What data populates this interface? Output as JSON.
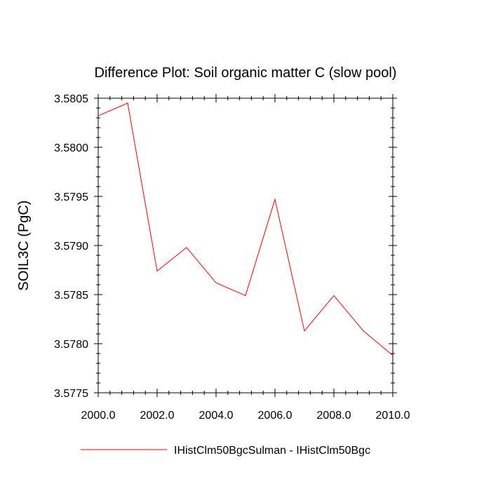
{
  "chart_data": {
    "type": "line",
    "title": "Difference Plot: Soil organic matter C (slow pool)",
    "xlabel": "",
    "ylabel": "SOIL3C  (PgC)",
    "xlim": [
      2000.0,
      2010.0
    ],
    "ylim": [
      3.5775,
      3.5805
    ],
    "xticks": [
      "2000.0",
      "2002.0",
      "2004.0",
      "2006.0",
      "2008.0",
      "2010.0"
    ],
    "yticks": [
      "3.5775",
      "3.5780",
      "3.5785",
      "3.5790",
      "3.5795",
      "3.5800",
      "3.5805"
    ],
    "x": [
      2000,
      2001,
      2002,
      2003,
      2004,
      2005,
      2006,
      2007,
      2008,
      2009,
      2010
    ],
    "series": [
      {
        "name": "IHistClm50BgcSulman - IHistClm50Bgc",
        "color": "#ff0000",
        "values": [
          3.58032,
          3.58045,
          3.57874,
          3.57898,
          3.57862,
          3.57849,
          3.57947,
          3.57813,
          3.57849,
          3.57813,
          3.57788
        ]
      }
    ],
    "grid": false,
    "legend_position": "bottom"
  }
}
